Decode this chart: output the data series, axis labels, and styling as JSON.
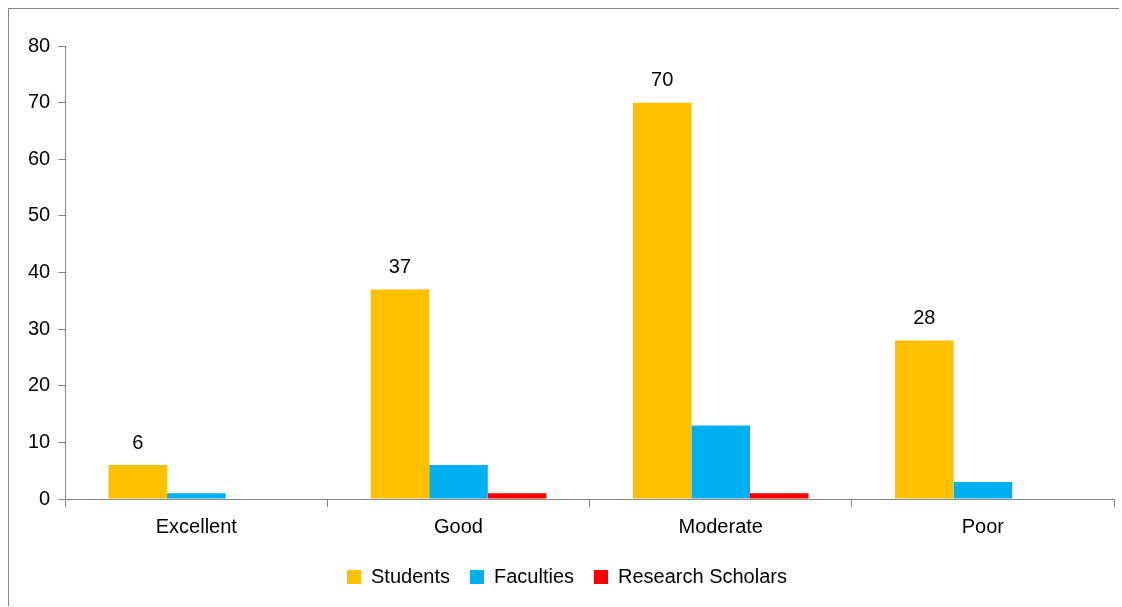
{
  "chart_data": {
    "type": "bar",
    "categories": [
      "Excellent",
      "Good",
      "Moderate",
      "Poor"
    ],
    "series": [
      {
        "name": "Students",
        "color": "#ffc000",
        "values": [
          6,
          37,
          70,
          28
        ],
        "value_labels": [
          "6",
          "37",
          "70",
          "28"
        ]
      },
      {
        "name": "Faculties",
        "color": "#00b0f0",
        "values": [
          1,
          6,
          13,
          3
        ]
      },
      {
        "name": "Research Scholars",
        "color": "#ff0000",
        "values": [
          0,
          1,
          1,
          0
        ]
      }
    ],
    "ylim": [
      0,
      80
    ],
    "yticks": [
      0,
      10,
      20,
      30,
      40,
      50,
      60,
      70,
      80
    ],
    "grid": false,
    "legend": "bottom"
  }
}
